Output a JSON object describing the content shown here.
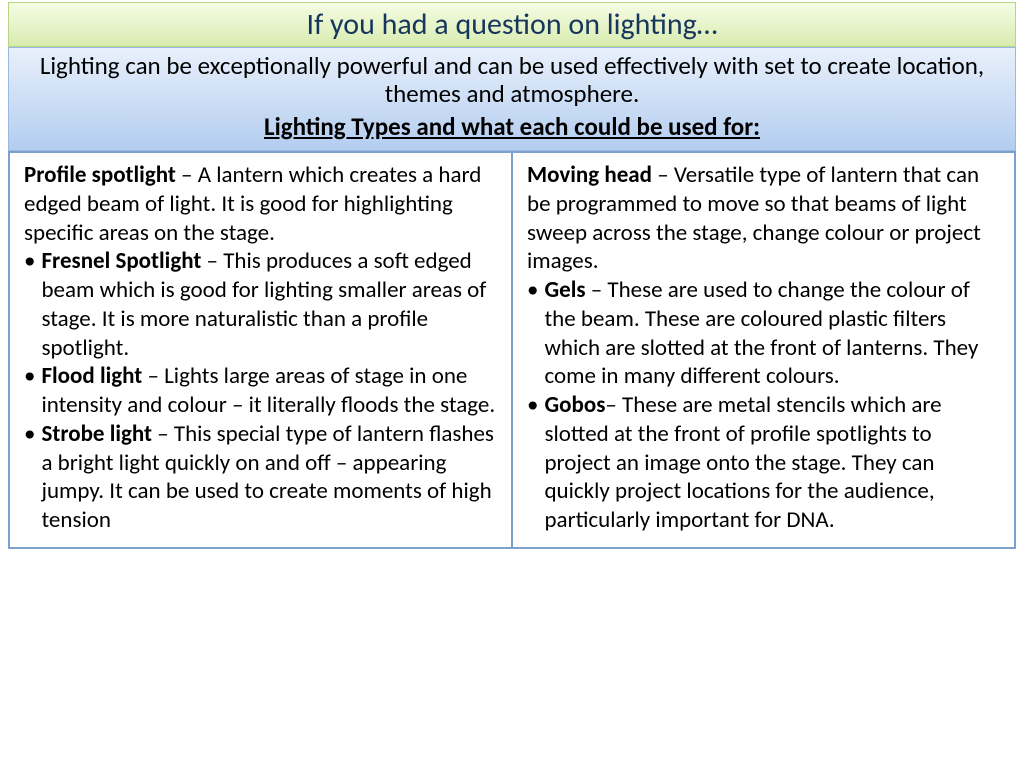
{
  "title": "If you had a question on lighting…",
  "intro": "Lighting can be exceptionally powerful and can be used effectively with set to create location, themes and atmosphere.",
  "intro_sub": "Lighting Types and what each could be used for:",
  "left": {
    "first": {
      "term": "Profile spotlight",
      "sep": " – ",
      "desc": "A lantern which creates a hard edged beam of light.  It is good for highlighting specific areas on the stage."
    },
    "items": [
      {
        "term": "Fresnel Spotlight",
        "sep": " – ",
        "desc": "This produces a soft edged beam which is good for lighting smaller areas of stage.  It is more naturalistic than a profile spotlight."
      },
      {
        "term": "Flood light",
        "sep": " – ",
        "desc": "Lights large areas of stage in one intensity and colour – it literally floods the stage."
      },
      {
        "term": "Strobe light",
        "sep": " – ",
        "desc": "This special type of lantern flashes a bright light quickly on and off – appearing jumpy.  It can be used to create moments of high tension"
      }
    ]
  },
  "right": {
    "first": {
      "term": "Moving head",
      "sep": " – ",
      "desc": "Versatile type of lantern that can be programmed to move so that beams of light sweep across the stage, change colour or project images."
    },
    "items": [
      {
        "term": "Gels",
        "sep": " – ",
        "desc": "These are used to change the colour of the beam.  These are coloured plastic filters which are slotted at the front of lanterns.  They come in many different colours."
      },
      {
        "term": "Gobos",
        "sep": "– ",
        "desc": "These are metal stencils which are slotted at the front of profile spotlights to project an image onto the stage.  They can quickly project locations for the audience, particularly important for DNA."
      }
    ]
  },
  "colors": {
    "title_text": "#17365d",
    "title_bg_top": "#f5fce4",
    "title_bg_bottom": "#d9ecb0",
    "intro_bg_top": "#e8f0fb",
    "intro_bg_bottom": "#b3cdf0",
    "border_blue": "#7ba2cf"
  },
  "bullet": "•"
}
